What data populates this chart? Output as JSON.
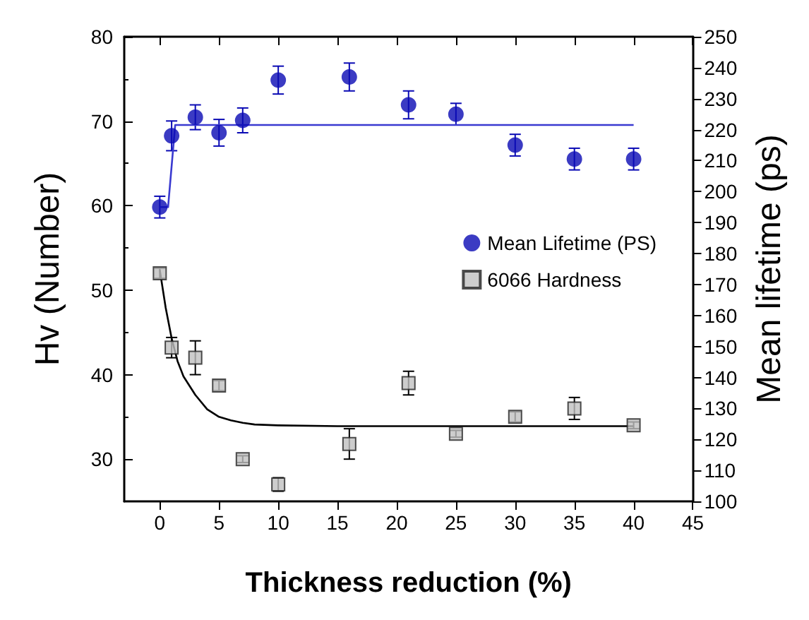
{
  "chart_data": {
    "type": "scatter",
    "xlabel": "Thickness reduction (%)",
    "ylabel": "Hv (Number)",
    "y2label": "Mean lifetime (ps)",
    "xlim": [
      -3,
      45
    ],
    "xticks": [
      0,
      5,
      10,
      15,
      20,
      25,
      30,
      35,
      40,
      45
    ],
    "ylim": [
      25,
      80
    ],
    "yticks": [
      30,
      40,
      50,
      60,
      70,
      80
    ],
    "y2lim": [
      100,
      250
    ],
    "y2ticks": [
      100,
      110,
      120,
      130,
      140,
      150,
      160,
      170,
      180,
      190,
      200,
      210,
      220,
      230,
      240,
      250
    ],
    "legend": "right",
    "grid": false,
    "series": [
      {
        "name": "Mean Lifetime (PS)",
        "marker": "circle",
        "axis": "y2",
        "color": "#0a0ab4",
        "x": [
          0,
          1,
          3,
          5,
          7,
          10,
          16,
          21,
          25,
          30,
          35,
          40
        ],
        "values": [
          195,
          218,
          224,
          219,
          223,
          236,
          237,
          228,
          225,
          215,
          210.5,
          210.5
        ],
        "errors": [
          3.5,
          4.8,
          4,
          4.3,
          4,
          4.5,
          4.5,
          4.5,
          3.5,
          3.5,
          3.5,
          3.5
        ]
      },
      {
        "name": "6066 Hardness",
        "marker": "square",
        "color": "#c0c0c0",
        "x": [
          0,
          1,
          3,
          5,
          7,
          10,
          16,
          21,
          25,
          30,
          35,
          40
        ],
        "values": [
          52,
          43.2,
          42,
          38.7,
          30,
          27,
          31.8,
          39,
          33,
          35,
          36,
          34
        ],
        "errors": [
          0.6,
          1.2,
          2,
          0.6,
          0.4,
          0.8,
          1.8,
          1.4,
          0.4,
          0.6,
          1.3,
          0.4
        ]
      },
      {
        "type": "line",
        "marker": "none",
        "axis": "y2",
        "color": "#3a3ad0",
        "x": [
          0,
          0.7,
          1.3,
          40
        ],
        "values": [
          195,
          195,
          221.5,
          221.5
        ]
      },
      {
        "type": "line",
        "marker": "none",
        "color": "#000000",
        "x": [
          0,
          0.5,
          1,
          1.5,
          2,
          3,
          4,
          5,
          6,
          7,
          8,
          10,
          15,
          20,
          30,
          40
        ],
        "values": [
          52.4,
          47.9,
          44.3,
          41.6,
          39.8,
          37.6,
          35.9,
          35,
          34.6,
          34.3,
          34.1,
          34,
          33.9,
          33.9,
          33.9,
          33.9
        ]
      }
    ]
  }
}
